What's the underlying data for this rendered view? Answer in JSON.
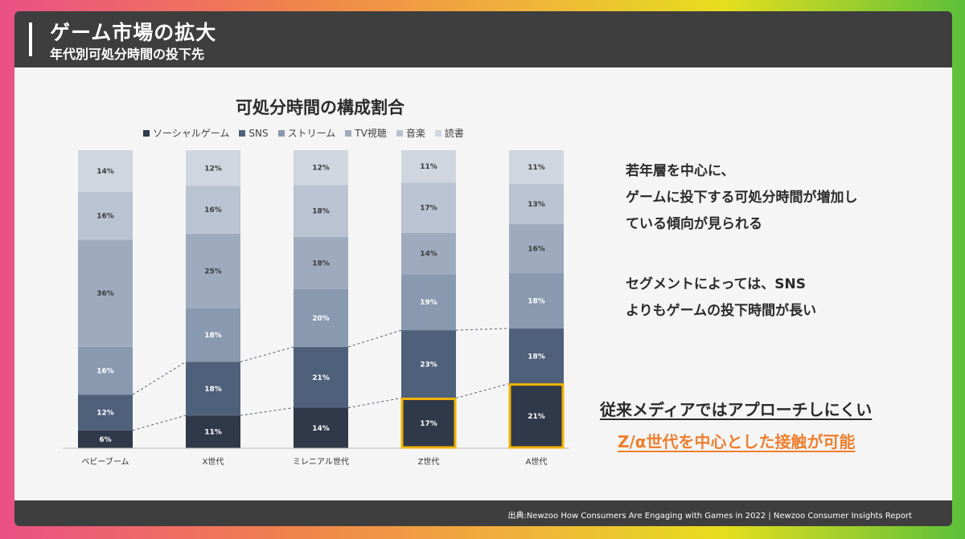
{
  "header": {
    "title": "ゲーム市場の拡大",
    "subtitle": "年代別可処分時間の投下先"
  },
  "chart_data": {
    "type": "bar",
    "stacked": true,
    "title": "可処分時間の構成割合",
    "categories": [
      "ベビーブーム",
      "X世代",
      "ミレニアル世代",
      "Z世代",
      "A世代"
    ],
    "series": [
      {
        "name": "ソーシャルゲーム",
        "values": [
          6,
          11,
          14,
          17,
          21
        ],
        "color": "#2f3949"
      },
      {
        "name": "SNS",
        "values": [
          12,
          18,
          21,
          23,
          18
        ],
        "color": "#4f607b"
      },
      {
        "name": "ストリーム",
        "values": [
          16,
          18,
          20,
          19,
          18
        ],
        "color": "#8999b0"
      },
      {
        "name": "TV視聴",
        "values": [
          36,
          25,
          18,
          14,
          16
        ],
        "color": "#9eabbe"
      },
      {
        "name": "音楽",
        "values": [
          16,
          16,
          18,
          17,
          13
        ],
        "color": "#b9c3d1"
      },
      {
        "name": "読書",
        "values": [
          14,
          12,
          12,
          11,
          11
        ],
        "color": "#cfd6e0"
      }
    ],
    "labels": [
      [
        "6%",
        "12%",
        "16%",
        "36%",
        "16%",
        "14%"
      ],
      [
        "11%",
        "18%",
        "18%",
        "25%",
        "16%",
        "12%"
      ],
      [
        "14%",
        "21%",
        "20%",
        "18%",
        "18%",
        "12%"
      ],
      [
        "17%",
        "23%",
        "19%",
        "14%",
        "17%",
        "11%"
      ],
      [
        "21%",
        "18%",
        "18%",
        "16%",
        "13%",
        "11%"
      ]
    ],
    "highlight_color": "#f0b400",
    "highlighted": [
      3,
      4
    ],
    "legend_position": "top"
  },
  "right_text": {
    "line1": "若年層を中心に、",
    "line2": "ゲームに投下する可処分時間が増加し",
    "line3": "ている傾向が見られる",
    "line4": "セグメントによっては、SNS",
    "line5": "よりもゲームの投下時間が長い"
  },
  "cta": {
    "line1": "従来メディアではアプローチしにくい",
    "line2": "Z/α世代を中心とした接触が可能"
  },
  "footer": {
    "source": "出典:Newzoo How Consumers Are Engaging with Games in 2022 | Newzoo Consumer Insights Report"
  }
}
